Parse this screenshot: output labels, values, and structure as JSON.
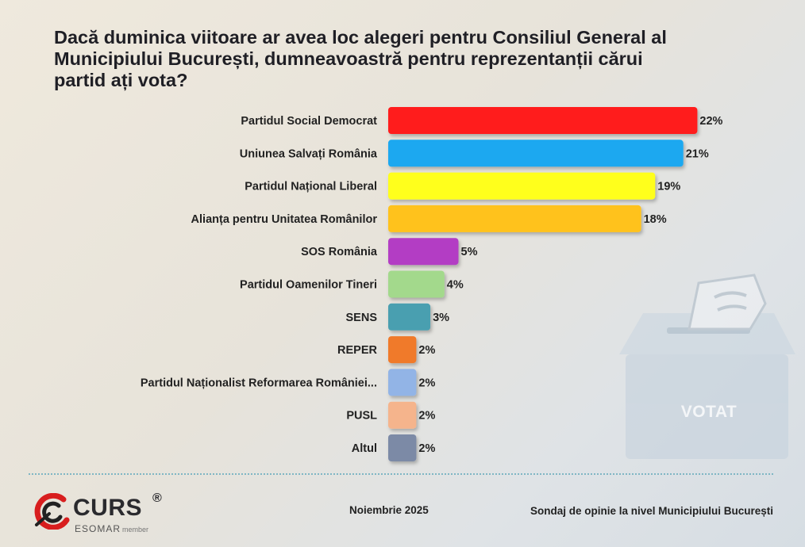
{
  "title": "Dacă duminica viitoare ar avea loc alegeri pentru Consiliul General al Municipiului București, dumneavoastră pentru reprezentanții cărui partid ați vota?",
  "chart_data": {
    "type": "bar",
    "orientation": "horizontal",
    "categories": [
      "Partidul Social Democrat",
      "Uniunea Salvați România",
      "Partidul Național Liberal",
      "Alianța pentru Unitatea Românilor",
      "SOS România",
      "Partidul Oamenilor Tineri",
      "SENS",
      "REPER",
      "Partidul Naționalist Reformarea României...",
      "PUSL",
      "Altul"
    ],
    "values": [
      22,
      21,
      19,
      18,
      5,
      4,
      3,
      2,
      2,
      2,
      2
    ],
    "value_labels": [
      "22%",
      "21%",
      "19%",
      "18%",
      "5%",
      "4%",
      "3%",
      "2%",
      "2%",
      "2%",
      "2%"
    ],
    "colors": [
      "#ff1a1a",
      "#1aa8f0",
      "#ffff1a",
      "#ffc21a",
      "#b33cc4",
      "#a3d98c",
      "#4a9fb0",
      "#f07a2a",
      "#92b4e6",
      "#f5b48c",
      "#7b8aa6"
    ],
    "unit": "%",
    "grid": false,
    "legend": "none"
  },
  "ballot": {
    "text": "VOTAT",
    "icon": "ballot-box-icon"
  },
  "footer": {
    "brand": "CURS",
    "registered": "®",
    "esomar": "ESOMAR",
    "member": "member",
    "date": "Noiembrie 2025",
    "source": "Sondaj de opinie la nivel Municipiului București"
  }
}
